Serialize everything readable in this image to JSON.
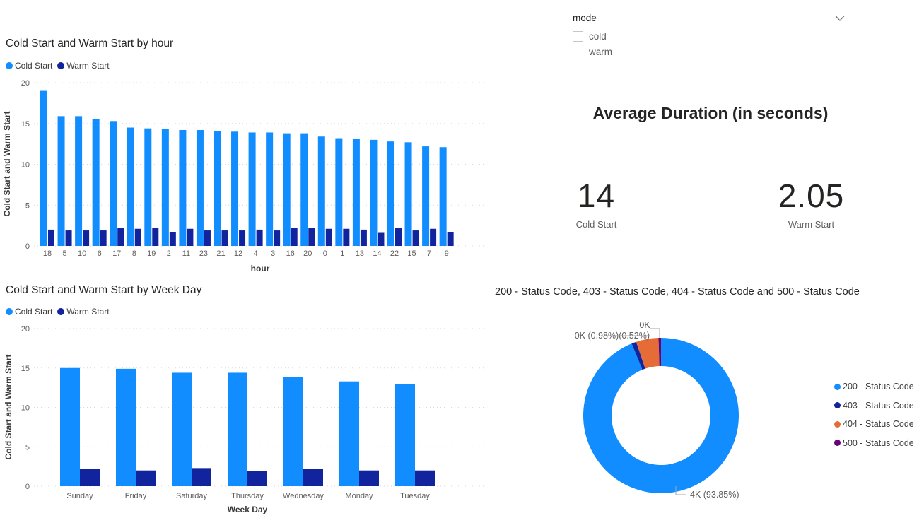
{
  "palette": {
    "cold_start": "#118DFF",
    "warm_start": "#12239E",
    "status_200": "#118DFF",
    "status_403": "#12239E",
    "status_404": "#E66C37",
    "status_500": "#6B007B",
    "title_text": "#252423",
    "axis_text": "#605E5C",
    "gridline": "#D9D9D9"
  },
  "slicer": {
    "title": "mode",
    "chevron_icon": "chevron-down",
    "options": [
      {
        "label": "cold",
        "checked": false
      },
      {
        "label": "warm",
        "checked": false
      }
    ]
  },
  "kpi_card": {
    "title": "Average Duration (in seconds)",
    "items": [
      {
        "value": "14",
        "label": "Cold Start"
      },
      {
        "value": "2.05",
        "label": "Warm Start"
      }
    ]
  },
  "chart_data": [
    {
      "id": "hour",
      "type": "bar",
      "title": "Cold Start and Warm Start by hour",
      "xlabel": "hour",
      "ylabel": "Cold Start and Warm Start",
      "ylim": [
        0,
        20
      ],
      "yticks": [
        0,
        5,
        10,
        15,
        20
      ],
      "grid": "dotted-horizontal",
      "legend_position": "top-left",
      "categories": [
        "18",
        "5",
        "10",
        "6",
        "17",
        "8",
        "19",
        "2",
        "11",
        "23",
        "21",
        "12",
        "4",
        "3",
        "16",
        "20",
        "0",
        "1",
        "13",
        "14",
        "22",
        "15",
        "7",
        "9"
      ],
      "series": [
        {
          "name": "Cold Start",
          "color": "#118DFF",
          "values": [
            19.0,
            15.9,
            15.9,
            15.5,
            15.3,
            14.5,
            14.4,
            14.3,
            14.2,
            14.2,
            14.1,
            14.0,
            13.9,
            13.9,
            13.8,
            13.8,
            13.4,
            13.2,
            13.1,
            13.0,
            12.8,
            12.7,
            12.2,
            12.1
          ]
        },
        {
          "name": "Warm Start",
          "color": "#12239E",
          "values": [
            2.0,
            1.9,
            1.9,
            1.9,
            2.2,
            2.1,
            2.2,
            1.7,
            2.1,
            1.9,
            1.9,
            1.9,
            2.0,
            1.9,
            2.2,
            2.2,
            2.1,
            2.1,
            2.0,
            1.6,
            2.2,
            1.9,
            2.1,
            1.7
          ]
        }
      ]
    },
    {
      "id": "weekday",
      "type": "bar",
      "title": "Cold Start and Warm Start by Week Day",
      "xlabel": "Week Day",
      "ylabel": "Cold Start and Warm Start",
      "ylim": [
        0,
        20
      ],
      "yticks": [
        0,
        5,
        10,
        15,
        20
      ],
      "grid": "dotted-horizontal",
      "legend_position": "top-left",
      "categories": [
        "Sunday",
        "Friday",
        "Saturday",
        "Thursday",
        "Wednesday",
        "Monday",
        "Tuesday"
      ],
      "series": [
        {
          "name": "Cold Start",
          "color": "#118DFF",
          "values": [
            15.0,
            14.9,
            14.4,
            14.4,
            13.9,
            13.3,
            13.0
          ]
        },
        {
          "name": "Warm Start",
          "color": "#12239E",
          "values": [
            2.2,
            2.0,
            2.3,
            1.9,
            2.2,
            2.0,
            2.0
          ]
        }
      ]
    },
    {
      "id": "status-codes",
      "type": "donut",
      "title": "200 - Status Code, 403 - Status Code, 404 - Status Code and 500 - Status Code",
      "legend_position": "right",
      "slices": [
        {
          "name": "200 - Status Code",
          "color": "#118DFF",
          "percent": 93.85,
          "label": "4K (93.85%)"
        },
        {
          "name": "403 - Status Code",
          "color": "#12239E",
          "percent": 0.98,
          "label": "0K (0.98%)"
        },
        {
          "name": "404 - Status Code",
          "color": "#E66C37",
          "percent": 4.65,
          "label": "0K"
        },
        {
          "name": "500 - Status Code",
          "color": "#6B007B",
          "percent": 0.52,
          "label": "(0.52%)"
        }
      ]
    }
  ]
}
